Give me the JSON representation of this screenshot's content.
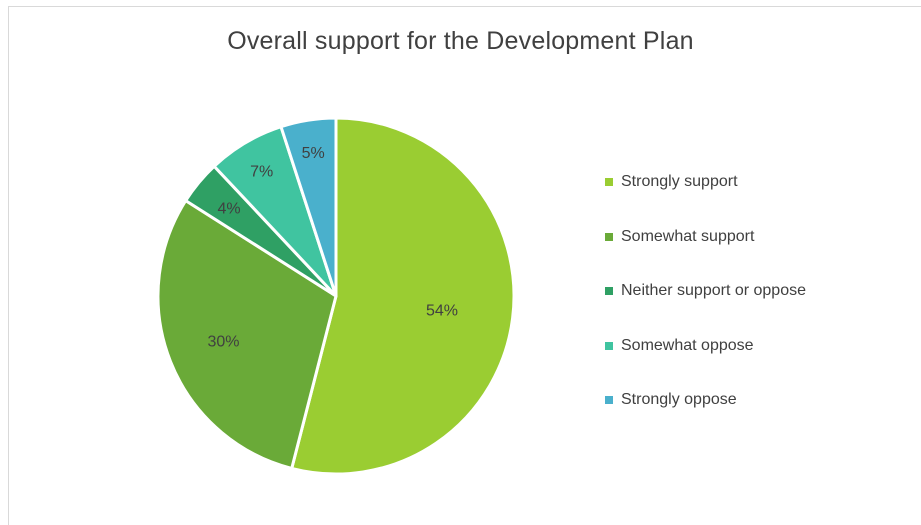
{
  "chart_data": {
    "type": "pie",
    "title": "Overall support for the Development Plan",
    "legend_position": "right",
    "slices": [
      {
        "label": "Strongly support",
        "value": 54,
        "display": "54%",
        "color": "#9ACD32"
      },
      {
        "label": "Somewhat support",
        "value": 30,
        "display": "30%",
        "color": "#6AAA38"
      },
      {
        "label": "Neither support or oppose",
        "value": 4,
        "display": "4%",
        "color": "#2FA064"
      },
      {
        "label": "Somewhat oppose",
        "value": 7,
        "display": "7%",
        "color": "#40C4A0"
      },
      {
        "label": "Strongly oppose",
        "value": 5,
        "display": "5%",
        "color": "#4AB0CC"
      }
    ]
  }
}
